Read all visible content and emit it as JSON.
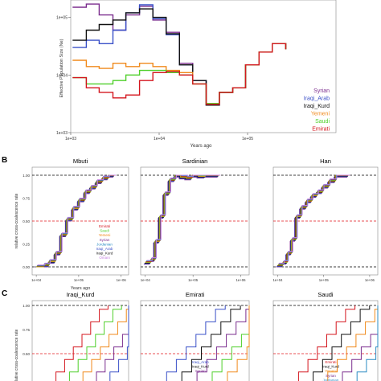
{
  "panel_letters": {
    "b": "B",
    "c": "C"
  },
  "colors": {
    "Syrian": "#7b2d8e",
    "Iraqi_Arab": "#3a50c8",
    "Iraqi_Kurd": "#111111",
    "Yemeni": "#f08a1c",
    "Saudi": "#4fcf2a",
    "Emirati": "#d4161e",
    "Omani": "#c37fe0",
    "Jordanian": "#2b8cc4",
    "dash_red": "#e31a1c",
    "dash_black": "#000000"
  },
  "chart_data": [
    {
      "type": "line",
      "panel": "A",
      "xscale": "log",
      "yscale": "log",
      "xlim": [
        1000,
        1000000
      ],
      "ylim": [
        1000,
        200000
      ],
      "xlabel": "Years ago",
      "ylabel": "Effective Population Size (Ne)",
      "xticks": [
        "1e+03",
        "1e+04",
        "1e+05"
      ],
      "yticks": [
        "1e+05",
        "1e+04",
        "1e+03"
      ],
      "legend": [
        "Syrian",
        "Iraqi_Arab",
        "Iraqi_Kurd",
        "Yemeni",
        "Saudi",
        "Emirati"
      ],
      "series": [
        {
          "name": "Syrian",
          "x": [
            1050,
            1500,
            2100,
            3000,
            4200,
            6000,
            8500,
            12000,
            17000,
            24000,
            34000,
            48000,
            68000,
            95000,
            135000,
            190000,
            270000
          ],
          "y": [
            150000,
            170000,
            110000,
            60000,
            110000,
            155000,
            90000,
            55000,
            16000,
            8000,
            3000,
            5000,
            6000,
            15000,
            25000,
            35000,
            28000
          ]
        },
        {
          "name": "Iraqi_Arab",
          "x": [
            1050,
            1500,
            2100,
            3000,
            4200,
            6000,
            8500,
            12000,
            17000,
            24000,
            34000,
            48000,
            68000,
            95000,
            135000,
            190000,
            270000
          ],
          "y": [
            30000,
            40000,
            35000,
            60000,
            120000,
            165000,
            95000,
            50000,
            15000,
            8000,
            3000,
            5000,
            6000,
            15000,
            25000,
            35000,
            28000
          ]
        },
        {
          "name": "Iraqi_Kurd",
          "x": [
            1050,
            1500,
            2100,
            3000,
            4200,
            6000,
            8500,
            12000,
            17000,
            24000,
            34000,
            48000,
            68000,
            95000,
            135000,
            190000,
            270000
          ],
          "y": [
            40000,
            60000,
            75000,
            90000,
            120000,
            140000,
            100000,
            52000,
            15000,
            8000,
            3000,
            5000,
            6000,
            15000,
            25000,
            35000,
            28000
          ]
        },
        {
          "name": "Yemeni",
          "x": [
            1050,
            1500,
            2100,
            3000,
            4200,
            6000,
            8500,
            12000,
            17000,
            24000,
            34000,
            48000,
            68000,
            95000,
            135000,
            190000,
            270000
          ],
          "y": [
            18000,
            14000,
            13000,
            16000,
            14000,
            16000,
            14000,
            12000,
            11000,
            7000,
            3200,
            5000,
            6000,
            15000,
            25000,
            35000,
            28000
          ]
        },
        {
          "name": "Saudi",
          "x": [
            1050,
            1500,
            2100,
            3000,
            4200,
            6000,
            8500,
            12000,
            17000,
            24000,
            34000,
            48000,
            68000,
            95000,
            135000,
            190000,
            270000
          ],
          "y": [
            9000,
            7000,
            7000,
            8000,
            10000,
            12000,
            12000,
            11000,
            10000,
            7000,
            3200,
            5000,
            6000,
            15000,
            25000,
            35000,
            28000
          ]
        },
        {
          "name": "Emirati",
          "x": [
            1050,
            1500,
            2100,
            3000,
            4200,
            6000,
            8500,
            12000,
            17000,
            24000,
            34000,
            48000,
            68000,
            95000,
            135000,
            190000,
            270000
          ],
          "y": [
            9000,
            6000,
            5000,
            4000,
            4500,
            8000,
            11000,
            11500,
            10000,
            7000,
            3100,
            5000,
            6000,
            15000,
            25000,
            35000,
            28000
          ]
        }
      ]
    },
    {
      "type": "line",
      "panel": "B",
      "charts": [
        {
          "title": "Mbuti",
          "ylabel": "relative cross-coalescence rate",
          "xlabel": "Years ago",
          "xticks": [
            "1e+04",
            "1e+05",
            "1e+06"
          ],
          "yticks": [
            "1.00",
            "0.75",
            "0.50",
            "0.25",
            "0.00"
          ],
          "legend": [
            "Emirati",
            "Saudi",
            "Yemeni",
            "Syrian",
            "Jordanian",
            "Iraqi_Arab",
            "Iraqi_Kurd",
            "Omani"
          ],
          "x": [
            10000,
            15000,
            20000,
            28000,
            38000,
            52000,
            72000,
            100000,
            140000,
            190000,
            260000,
            360000,
            500000,
            700000
          ],
          "y": [
            0.0,
            0.02,
            0.06,
            0.15,
            0.35,
            0.52,
            0.64,
            0.73,
            0.82,
            0.87,
            0.93,
            0.97,
            1.0,
            1.0
          ]
        },
        {
          "title": "Sardinian",
          "xticks": [
            "1e+04",
            "1e+05",
            "1e+06"
          ],
          "x": [
            10000,
            13000,
            16000,
            20000,
            25000,
            32000,
            42000,
            55000,
            72000,
            95000,
            130000,
            180000,
            250000,
            350000
          ],
          "y": [
            0.05,
            0.08,
            0.28,
            0.55,
            0.8,
            0.95,
            1.0,
            0.98,
            0.97,
            1.0,
            0.99,
            1.0,
            1.0,
            1.0
          ]
        },
        {
          "title": "Han",
          "xticks": [
            "1e+04",
            "1e+05",
            "1e+06"
          ],
          "x": [
            10000,
            13000,
            16000,
            20000,
            25000,
            32000,
            42000,
            55000,
            72000,
            95000,
            130000,
            180000,
            250000,
            350000
          ],
          "y": [
            0.02,
            0.05,
            0.15,
            0.3,
            0.55,
            0.65,
            0.72,
            0.78,
            0.82,
            0.88,
            0.94,
            1.0,
            1.0,
            1.0
          ]
        }
      ]
    },
    {
      "type": "line",
      "panel": "C",
      "charts": [
        {
          "title": "Iraqi_Kurd",
          "ylabel": "relative cross-coalescence rate",
          "yticks": [
            "1.00",
            "0.75",
            "0.50"
          ]
        },
        {
          "title": "Emirati",
          "yticks": [
            "1.00",
            "0.75",
            "0.50"
          ],
          "legend": [
            "Iraqi_Arab",
            "Iraqi_Kurd",
            "Syrian"
          ]
        },
        {
          "title": "Saudi",
          "yticks": [
            "1.00",
            "0.75",
            "0.50"
          ],
          "legend": [
            "Emirati",
            "Iraqi_Kurd",
            "Yemeni",
            "Syrian",
            "Jordanian"
          ]
        }
      ]
    }
  ]
}
